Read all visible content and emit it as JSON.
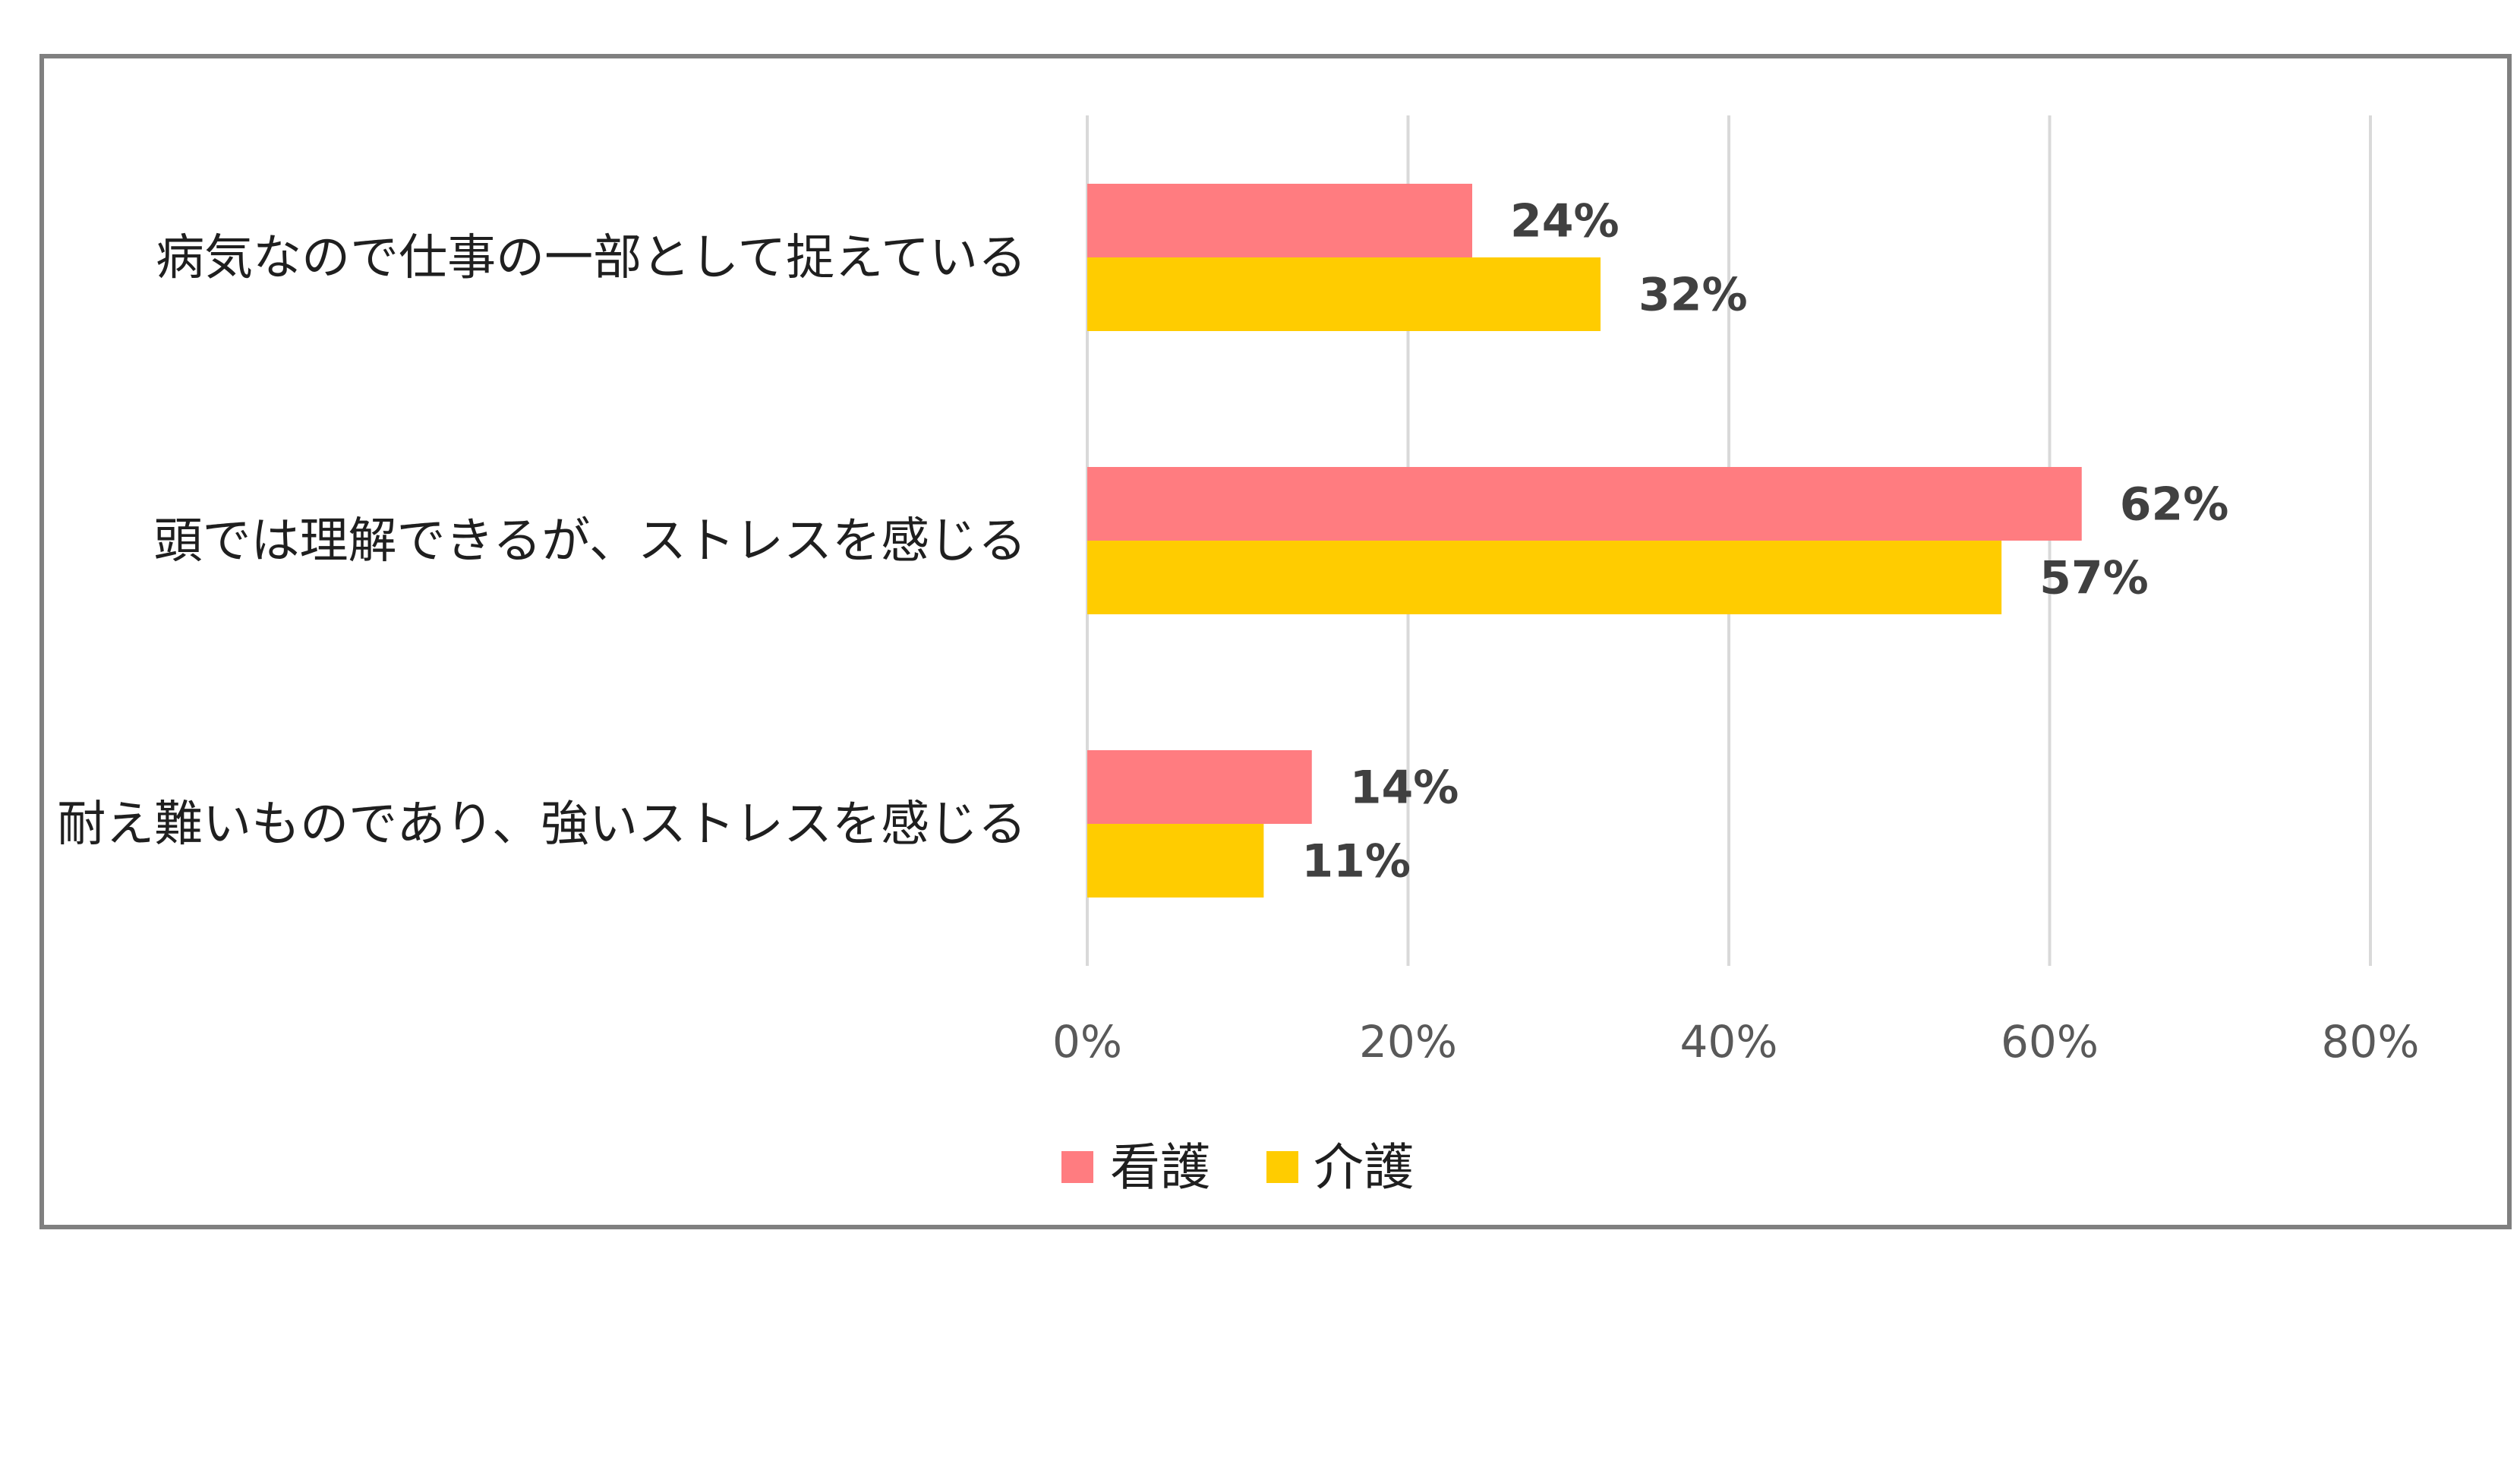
{
  "chart_data": {
    "type": "bar",
    "orientation": "horizontal",
    "categories": [
      "病気なので仕事の一部として捉えている",
      "頭では理解できるが、ストレスを感じる",
      "耐え難いものであり、強いストレスを感じる"
    ],
    "series": [
      {
        "name": "看護",
        "color": "#FF7C80",
        "values": [
          24,
          62,
          14
        ]
      },
      {
        "name": "介護",
        "color": "#FFCC00",
        "values": [
          32,
          57,
          11
        ]
      }
    ],
    "value_labels": [
      [
        "24%",
        "62%",
        "14%"
      ],
      [
        "32%",
        "57%",
        "11%"
      ]
    ],
    "xlim": [
      0,
      80
    ],
    "xticks": [
      0,
      20,
      40,
      60,
      80
    ],
    "xtick_labels": [
      "0%",
      "20%",
      "40%",
      "60%",
      "80%"
    ],
    "grid": "vertical",
    "legend_position": "bottom",
    "colors": {
      "frame": "#808080",
      "grid": "#D9D9D9"
    }
  }
}
